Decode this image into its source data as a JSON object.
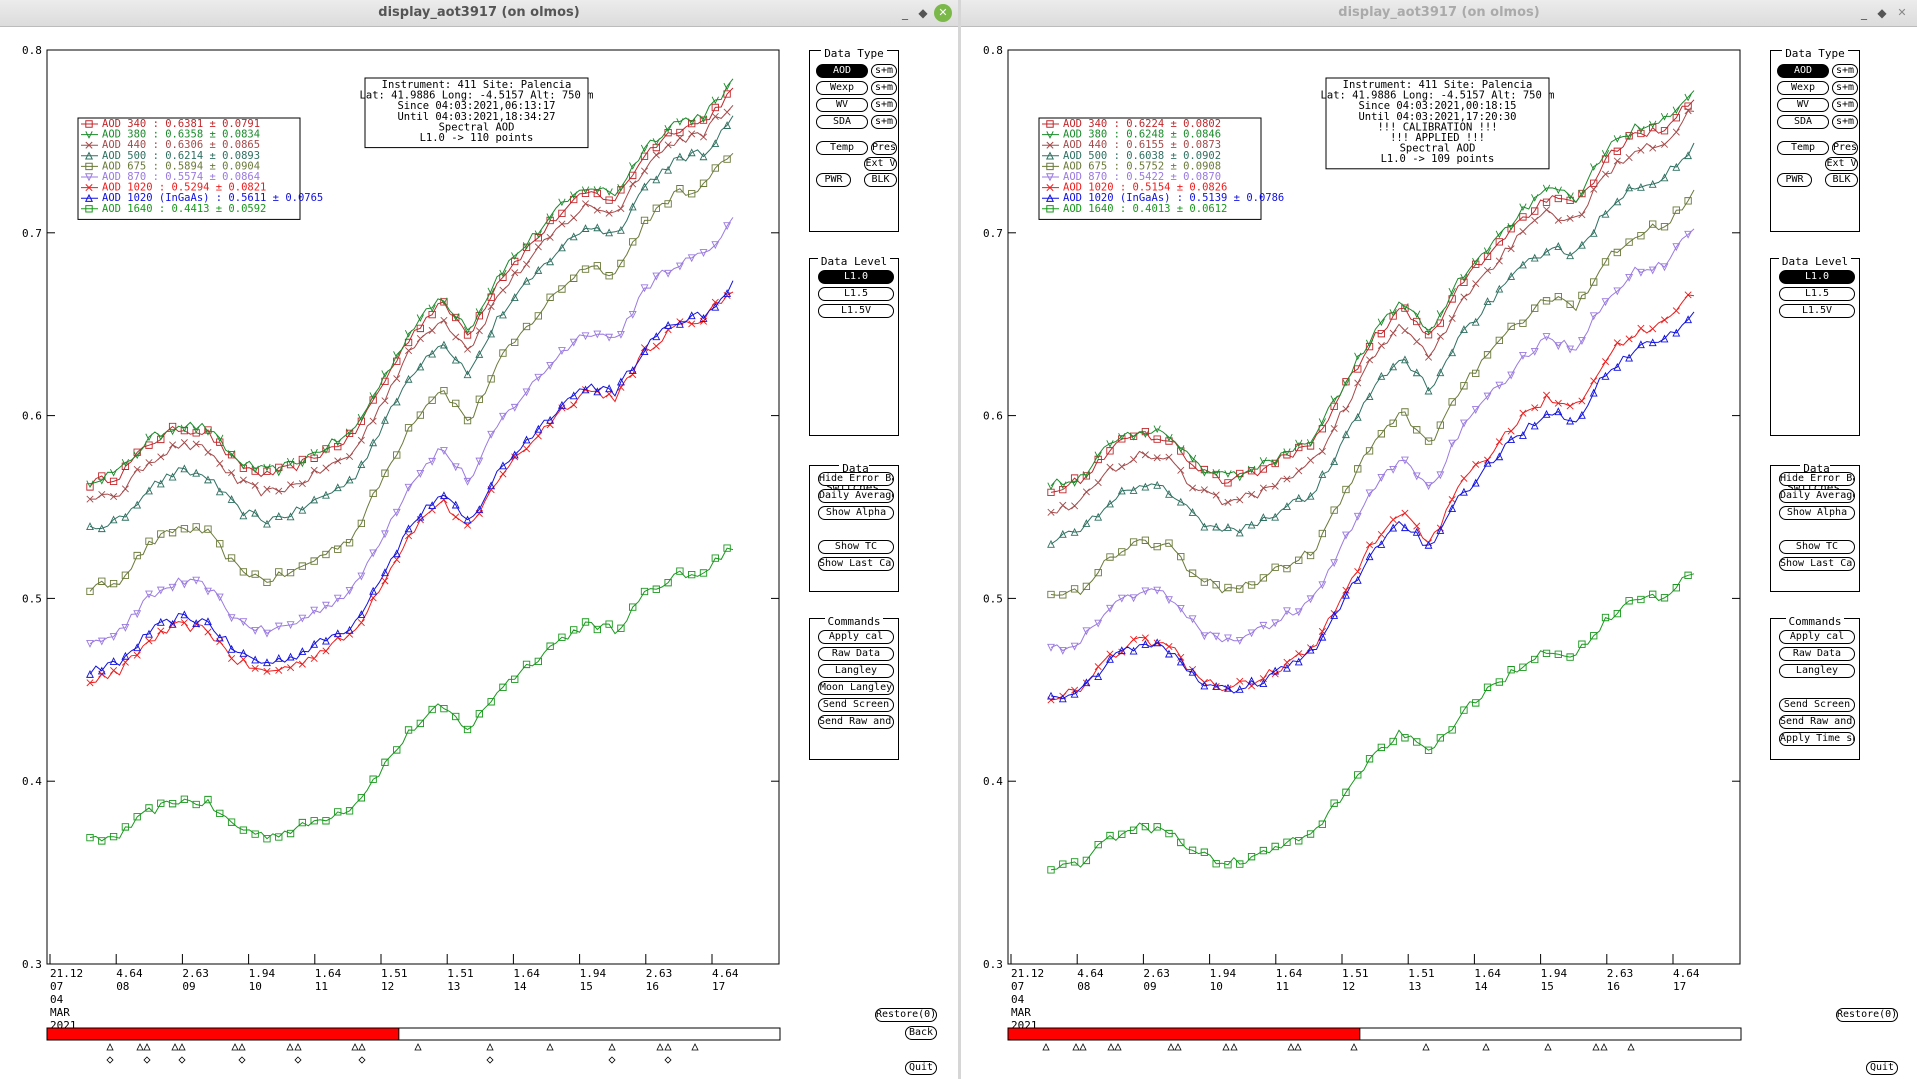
{
  "windows": [
    {
      "id": "left",
      "title": "display_aot3917 (on olmos)",
      "active": true,
      "info": [
        "Instrument: 411 Site: Palencia",
        "Lat: 41.9886 Long: -4.5157 Alt: 750 m",
        "Since 04:03:2021,06:13:17",
        "Until 04:03:2021,18:34:27",
        "Spectral AOD",
        "L1.0 -> 110 points"
      ],
      "legend": [
        {
          "label": "AOD 340  : 0.6381 ± 0.0791",
          "color": "#c0282c"
        },
        {
          "label": "AOD 380  : 0.6358 ± 0.0834",
          "color": "#1a8a2a"
        },
        {
          "label": "AOD 440  : 0.6306 ± 0.0865",
          "color": "#a54a4a"
        },
        {
          "label": "AOD 500  : 0.6214 ± 0.0893",
          "color": "#2f7060"
        },
        {
          "label": "AOD 675  : 0.5894 ± 0.0904",
          "color": "#6a7a3a"
        },
        {
          "label": "AOD 870  : 0.5574 ± 0.0864",
          "color": "#9a7ae0"
        },
        {
          "label": "AOD 1020  : 0.5294 ± 0.0821",
          "color": "#ee1c1c"
        },
        {
          "label": "AOD 1020 (InGaAs)  : 0.5611 ± 0.0765",
          "color": "#1010e0"
        },
        {
          "label": "AOD 1640  : 0.4413 ± 0.0592",
          "color": "#18981c"
        }
      ],
      "xticks": [
        {
          "top": "21.12",
          "bottom": "07"
        },
        {
          "top": "4.64",
          "bottom": "08"
        },
        {
          "top": "2.63",
          "bottom": "09"
        },
        {
          "top": "1.94",
          "bottom": "10"
        },
        {
          "top": "1.64",
          "bottom": "11"
        },
        {
          "top": "1.51",
          "bottom": "12"
        },
        {
          "top": "1.51",
          "bottom": "13"
        },
        {
          "top": "1.64",
          "bottom": "14"
        },
        {
          "top": "1.94",
          "bottom": "15"
        },
        {
          "top": "2.63",
          "bottom": "16"
        },
        {
          "top": "4.64",
          "bottom": "17"
        }
      ],
      "date_lines": [
        "04",
        "MAR",
        "2021"
      ],
      "progress": 0.48,
      "restore_label": "Restore(0)",
      "back_label": "Back",
      "quit_label": "Quit",
      "data_level_selected": "L1.0",
      "commands": [
        "Apply cal",
        "Raw Data",
        "Langley",
        "Moon Langley",
        "Send Screen",
        "Send Raw and AOD"
      ]
    },
    {
      "id": "right",
      "title": "display_aot3917 (on olmos)",
      "active": false,
      "info": [
        "Instrument: 411 Site: Palencia",
        "Lat: 41.9886 Long: -4.5157 Alt: 750 m",
        "Since 04:03:2021,00:18:15",
        "Until 04:03:2021,17:20:30",
        "!!! CALIBRATION !!!",
        "!!!  APPLIED  !!!",
        "Spectral AOD",
        "L1.0 -> 109 points"
      ],
      "legend": [
        {
          "label": "AOD 340  : 0.6224 ± 0.0802",
          "color": "#c0282c"
        },
        {
          "label": "AOD 380  : 0.6248 ± 0.0846",
          "color": "#1a8a2a"
        },
        {
          "label": "AOD 440  : 0.6155 ± 0.0873",
          "color": "#a54a4a"
        },
        {
          "label": "AOD 500  : 0.6038 ± 0.0902",
          "color": "#2f7060"
        },
        {
          "label": "AOD 675  : 0.5752 ± 0.0908",
          "color": "#6a7a3a"
        },
        {
          "label": "AOD 870  : 0.5422 ± 0.0870",
          "color": "#9a7ae0"
        },
        {
          "label": "AOD 1020  : 0.5154 ± 0.0826",
          "color": "#ee1c1c"
        },
        {
          "label": "AOD 1020 (InGaAs)  : 0.5139 ± 0.0786",
          "color": "#1010e0"
        },
        {
          "label": "AOD 1640  : 0.4013 ± 0.0612",
          "color": "#18981c"
        }
      ],
      "xticks": [
        {
          "top": "21.12",
          "bottom": "07"
        },
        {
          "top": "4.64",
          "bottom": "08"
        },
        {
          "top": "2.63",
          "bottom": "09"
        },
        {
          "top": "1.94",
          "bottom": "10"
        },
        {
          "top": "1.64",
          "bottom": "11"
        },
        {
          "top": "1.51",
          "bottom": "12"
        },
        {
          "top": "1.51",
          "bottom": "13"
        },
        {
          "top": "1.64",
          "bottom": "14"
        },
        {
          "top": "1.94",
          "bottom": "15"
        },
        {
          "top": "2.63",
          "bottom": "16"
        },
        {
          "top": "4.64",
          "bottom": "17"
        }
      ],
      "date_lines": [
        "04",
        "MAR",
        "2021"
      ],
      "progress": 0.48,
      "restore_label": "Restore(0)",
      "back_label": "",
      "quit_label": "Quit",
      "data_level_selected": "L1.0",
      "commands": [
        "Apply cal",
        "Raw Data",
        "Langley",
        "",
        "Send Screen",
        "Send Raw and AOD",
        "Apply Time shift"
      ]
    }
  ],
  "panel": {
    "data_type_title": "Data Type",
    "data_type_rows": [
      [
        "AOD",
        "s+m"
      ],
      [
        "Wexp",
        "s+m"
      ],
      [
        "WV",
        "s+m"
      ],
      [
        "SDA",
        "s+m"
      ]
    ],
    "temp": "Temp",
    "pres": "Pres",
    "extv": "Ext V",
    "pwr": "PWR",
    "blk": "BLK",
    "data_level_title": "Data Level",
    "levels": [
      "L1.0",
      "L1.5",
      "L1.5V"
    ],
    "switches_title": "Data Switches",
    "switches": [
      "Hide Error Bars",
      "Daily Averages",
      "Show Alpha",
      "",
      "Show TC",
      "Show Last Cal"
    ],
    "commands_title": "Commands"
  },
  "chart_data": [
    {
      "type": "line",
      "panel": "left",
      "title": "",
      "xlabel": "",
      "ylabel": "",
      "ylim": [
        0.3,
        0.8
      ],
      "yticks": [
        0.3,
        0.4,
        0.5,
        0.6,
        0.7,
        0.8
      ],
      "x_range_hours": [
        6.2,
        18.6
      ],
      "grid": false,
      "legend_position": "top-left",
      "series_shape": [
        0,
        0.02,
        0.1,
        0.14,
        0.13,
        0.05,
        0.02,
        0.04,
        0.08,
        0.12,
        0.25,
        0.38,
        0.46,
        0.38,
        0.52,
        0.6,
        0.68,
        0.74,
        0.72,
        0.84,
        0.9,
        0.92,
        1.0
      ],
      "series": [
        {
          "name": "AOD 340",
          "start": 0.563,
          "end": 0.778
        },
        {
          "name": "AOD 380",
          "start": 0.565,
          "end": 0.782
        },
        {
          "name": "AOD 440",
          "start": 0.553,
          "end": 0.772
        },
        {
          "name": "AOD 500",
          "start": 0.538,
          "end": 0.762
        },
        {
          "name": "AOD 675",
          "start": 0.505,
          "end": 0.745
        },
        {
          "name": "AOD 870",
          "start": 0.477,
          "end": 0.706
        },
        {
          "name": "AOD 1020",
          "start": 0.455,
          "end": 0.67
        },
        {
          "name": "AOD 1020 (InGaAs)",
          "start": 0.46,
          "end": 0.672
        },
        {
          "name": "AOD 1640",
          "start": 0.367,
          "end": 0.528
        }
      ]
    },
    {
      "type": "line",
      "panel": "right",
      "title": "",
      "xlabel": "",
      "ylabel": "",
      "ylim": [
        0.3,
        0.8
      ],
      "yticks": [
        0.3,
        0.4,
        0.5,
        0.6,
        0.7,
        0.8
      ],
      "x_range_hours": [
        6.2,
        18.6
      ],
      "grid": false,
      "legend_position": "top-left",
      "series_shape": [
        0,
        0.02,
        0.1,
        0.14,
        0.13,
        0.05,
        0.02,
        0.04,
        0.08,
        0.12,
        0.25,
        0.38,
        0.46,
        0.38,
        0.52,
        0.6,
        0.68,
        0.74,
        0.72,
        0.84,
        0.9,
        0.92,
        1.0
      ],
      "series": [
        {
          "name": "AOD 340",
          "start": 0.56,
          "end": 0.775
        },
        {
          "name": "AOD 380",
          "start": 0.562,
          "end": 0.78
        },
        {
          "name": "AOD 440",
          "start": 0.548,
          "end": 0.768
        },
        {
          "name": "AOD 500",
          "start": 0.532,
          "end": 0.748
        },
        {
          "name": "AOD 675",
          "start": 0.5,
          "end": 0.722
        },
        {
          "name": "AOD 870",
          "start": 0.472,
          "end": 0.702
        },
        {
          "name": "AOD 1020",
          "start": 0.446,
          "end": 0.668
        },
        {
          "name": "AOD 1020 (InGaAs)",
          "start": 0.445,
          "end": 0.658
        },
        {
          "name": "AOD 1640",
          "start": 0.352,
          "end": 0.515
        }
      ]
    }
  ]
}
